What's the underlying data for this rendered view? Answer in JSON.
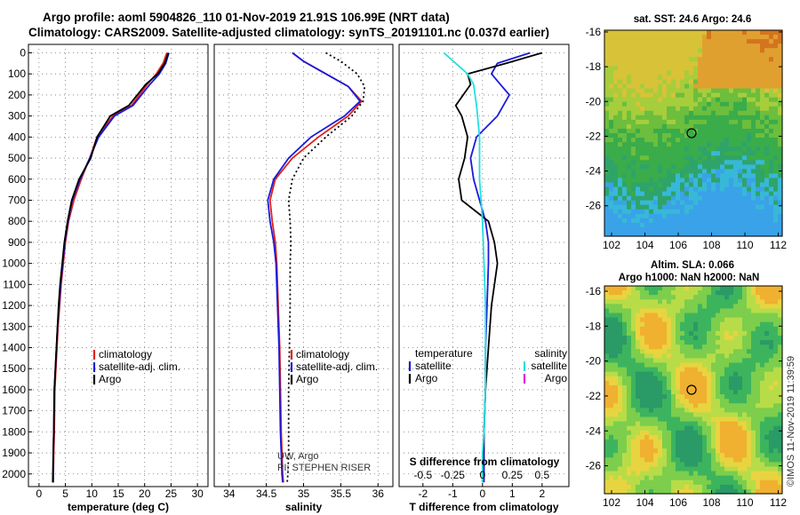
{
  "title": {
    "line1": "Argo profile: aoml 5904826_110 01-Nov-2019 21.91S 106.99E (NRT data)",
    "line2": "Climatology: CARS2009. Satellite-adjusted climatology: synTS_20191101.nc (0.037d earlier)"
  },
  "colors": {
    "climatology": "#e0201a",
    "satellite": "#1a1adc",
    "argo": "#000000",
    "salinity_satellite": "#22e0e0",
    "salinity_argo": "#e020e0"
  },
  "chart_data": [
    {
      "type": "line",
      "name": "temperature-profile",
      "xlabel": "temperature (deg C)",
      "xlim": [
        -2,
        32
      ],
      "xticks": [
        0,
        5,
        10,
        15,
        20,
        25,
        30
      ],
      "ylim": [
        2060,
        0
      ],
      "yticks": [
        0,
        100,
        200,
        300,
        400,
        500,
        600,
        700,
        800,
        900,
        1000,
        1100,
        1200,
        1300,
        1400,
        1500,
        1600,
        1700,
        1800,
        1900,
        2000
      ],
      "legend": [
        "climatology",
        "satellite-adj. clim.",
        "Argo"
      ],
      "series": [
        {
          "name": "climatology",
          "color": "#e0201a",
          "x": [
            24.2,
            23.5,
            22.2,
            20.5,
            17.5,
            14.0,
            11.0,
            9.6,
            8.0,
            6.6,
            5.6,
            5.0,
            4.6,
            4.2,
            3.9,
            3.6,
            3.4,
            3.2,
            3.0,
            2.9,
            2.8,
            2.7
          ],
          "y": [
            0,
            50,
            100,
            150,
            250,
            300,
            400,
            500,
            600,
            700,
            800,
            900,
            1000,
            1100,
            1200,
            1300,
            1400,
            1500,
            1600,
            1800,
            1900,
            2040
          ]
        },
        {
          "name": "satellite-adj. clim.",
          "color": "#1a1adc",
          "x": [
            24.6,
            24.0,
            22.8,
            21.0,
            17.8,
            14.3,
            11.3,
            9.6,
            7.8,
            6.3,
            5.5,
            4.9,
            4.5,
            4.1,
            3.8,
            3.5,
            3.3,
            3.1,
            2.9,
            2.8,
            2.7,
            2.7
          ],
          "y": [
            0,
            50,
            100,
            150,
            250,
            300,
            400,
            500,
            600,
            700,
            800,
            900,
            1000,
            1100,
            1200,
            1300,
            1400,
            1500,
            1600,
            1800,
            1900,
            2040
          ]
        },
        {
          "name": "Argo",
          "color": "#000000",
          "x": [
            24.5,
            23.8,
            22.5,
            20.2,
            17.0,
            13.5,
            11.0,
            9.8,
            7.6,
            6.2,
            5.4,
            4.8,
            4.4,
            4.0,
            3.7,
            3.5,
            3.3,
            3.1,
            2.9,
            2.8,
            2.7,
            2.6
          ],
          "y": [
            0,
            50,
            100,
            150,
            250,
            300,
            400,
            500,
            600,
            700,
            800,
            900,
            1000,
            1100,
            1200,
            1300,
            1400,
            1500,
            1600,
            1800,
            1900,
            2040
          ]
        }
      ]
    },
    {
      "type": "line",
      "name": "salinity-profile",
      "xlabel": "salinity",
      "xlim": [
        33.8,
        36.2
      ],
      "xticks": [
        34,
        34.5,
        35,
        35.5,
        36
      ],
      "ylim": [
        2060,
        0
      ],
      "legend": [
        "climatology",
        "satellite-adj. clim.",
        "Argo"
      ],
      "series": [
        {
          "name": "climatology",
          "color": "#e0201a",
          "x": [
            34.85,
            35.0,
            35.3,
            35.6,
            35.78,
            35.6,
            35.2,
            34.85,
            34.62,
            34.55,
            34.58,
            34.62,
            34.64,
            34.66,
            34.68,
            34.69,
            34.7,
            34.71,
            34.72,
            34.73
          ],
          "y": [
            0,
            40,
            100,
            160,
            230,
            300,
            400,
            500,
            600,
            700,
            800,
            900,
            1000,
            1200,
            1400,
            1600,
            1800,
            1900,
            2000,
            2040
          ]
        },
        {
          "name": "satellite-adj. clim.",
          "color": "#1a1adc",
          "x": [
            34.85,
            35.0,
            35.3,
            35.6,
            35.76,
            35.55,
            35.1,
            34.8,
            34.6,
            34.52,
            34.55,
            34.6,
            34.63,
            34.65,
            34.67,
            34.68,
            34.69,
            34.7,
            34.71,
            34.72
          ],
          "y": [
            0,
            40,
            100,
            160,
            230,
            300,
            400,
            500,
            600,
            700,
            800,
            900,
            1000,
            1200,
            1400,
            1600,
            1800,
            1900,
            2000,
            2040
          ]
        },
        {
          "name": "Argo",
          "color": "#000000",
          "x": [
            35.3,
            35.5,
            35.72,
            35.82,
            35.8,
            35.65,
            35.3,
            35.0,
            34.85,
            34.8,
            34.82,
            34.83,
            34.82,
            34.82,
            34.81,
            34.8,
            34.8,
            34.8,
            34.79,
            34.78
          ],
          "y": [
            0,
            40,
            100,
            160,
            230,
            300,
            400,
            500,
            600,
            700,
            800,
            900,
            1000,
            1200,
            1400,
            1600,
            1800,
            1900,
            2000,
            2040
          ]
        }
      ]
    },
    {
      "type": "line",
      "name": "difference-profile",
      "xlabel": "T difference from climatology",
      "xlabel_top": "S difference from climatology",
      "xlim": [
        -2.8,
        2.9
      ],
      "xticks": [
        -2,
        -1,
        0,
        1,
        2
      ],
      "xticks_top": [
        "-0.5",
        "-0.25",
        "0",
        "0.25",
        "0.5"
      ],
      "ylim": [
        2060,
        0
      ],
      "legend_left_title": "temperature",
      "legend_right_title": "salinity",
      "legend_left": [
        "satellite",
        "Argo"
      ],
      "legend_right": [
        "satellite",
        "Argo"
      ],
      "series": [
        {
          "name": "T satellite",
          "color": "#1a1adc",
          "x": [
            1.6,
            0.5,
            0.3,
            0.6,
            0.9,
            0.5,
            -0.2,
            -0.4,
            -0.3,
            -0.1,
            0.1,
            0.2,
            0.2,
            0.15,
            0.1,
            0.1,
            0.05,
            0.05,
            0.05
          ],
          "y": [
            0,
            50,
            100,
            150,
            200,
            300,
            400,
            500,
            600,
            700,
            800,
            900,
            1000,
            1200,
            1400,
            1600,
            1800,
            2000,
            2040
          ]
        },
        {
          "name": "T Argo",
          "color": "#000000",
          "x": [
            2.0,
            0.8,
            -0.5,
            -0.4,
            -0.9,
            -0.7,
            -0.5,
            -0.6,
            -0.8,
            -0.7,
            0.2,
            0.4,
            0.5,
            0.3,
            0.2,
            0.1,
            0.05,
            0.0,
            0.0
          ],
          "y": [
            0,
            50,
            100,
            150,
            250,
            300,
            400,
            500,
            600,
            700,
            800,
            900,
            1000,
            1200,
            1400,
            1600,
            1800,
            2000,
            2040
          ]
        },
        {
          "name": "S satellite",
          "color": "#22e0e0",
          "x": [
            -1.3,
            -0.9,
            -0.5,
            -0.3,
            -0.2,
            -0.1,
            -0.1,
            0.0,
            0.05,
            0.1,
            0.1,
            0.1,
            0.05,
            0.0,
            0.0,
            0.0
          ],
          "y": [
            0,
            50,
            100,
            150,
            250,
            400,
            600,
            800,
            1000,
            1200,
            1400,
            1600,
            1800,
            1900,
            2000,
            2040
          ]
        }
      ]
    }
  ],
  "maps": {
    "sst": {
      "title": "sat. SST: 24.6 Argo: 24.6",
      "yticks": [
        "-16",
        "-18",
        "-20",
        "-22",
        "-24",
        "-26"
      ],
      "xticks": [
        "102",
        "104",
        "106",
        "108",
        "110",
        "112"
      ]
    },
    "sla": {
      "title_line1": "Altim. SLA: 0.066",
      "title_line2": "Argo h1000: NaN h2000: NaN",
      "yticks": [
        "-16",
        "-18",
        "-20",
        "-22",
        "-24",
        "-26"
      ],
      "xticks": [
        "102",
        "104",
        "106",
        "108",
        "110",
        "112"
      ]
    }
  },
  "credit": {
    "line1": "UW, Argo",
    "line2": "PI: STEPHEN RISER"
  },
  "watermark": "©IMOS 11-Nov-2019 11:39:59"
}
